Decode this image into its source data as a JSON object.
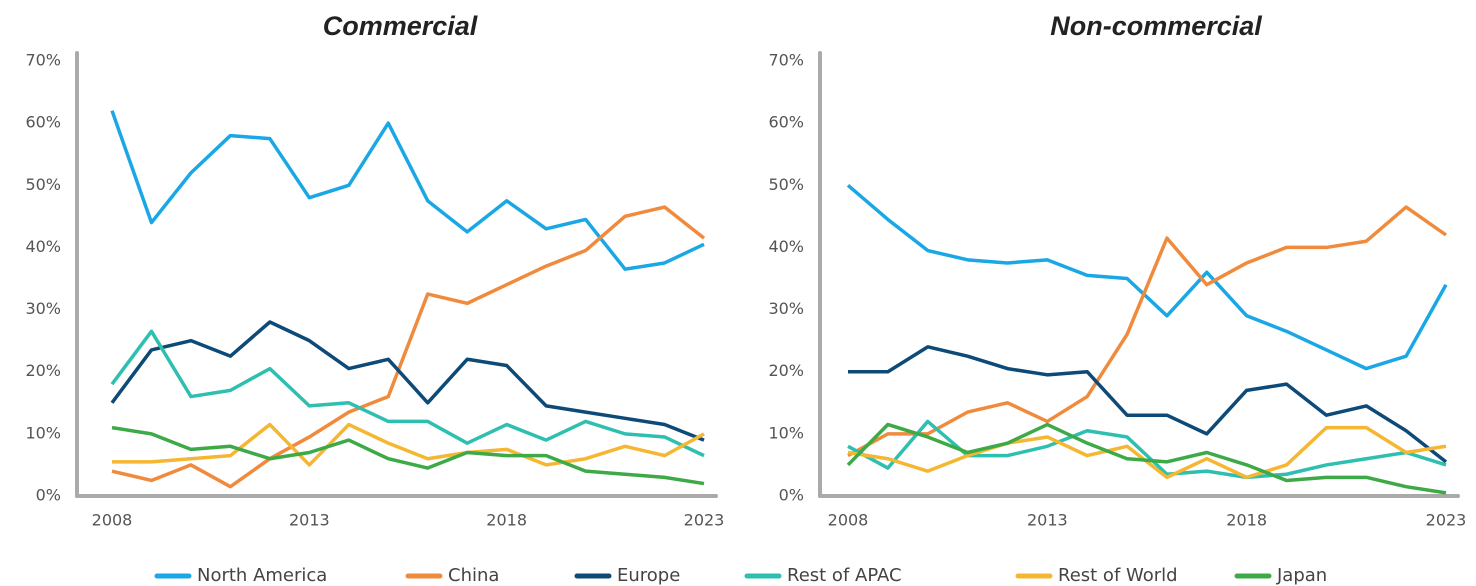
{
  "chart_data": [
    {
      "type": "line",
      "title": "Commercial",
      "x": [
        2008,
        2009,
        2010,
        2011,
        2012,
        2013,
        2014,
        2015,
        2016,
        2017,
        2018,
        2019,
        2020,
        2021,
        2022,
        2023
      ],
      "xlim": [
        2008,
        2023
      ],
      "xticks": [
        2008,
        2013,
        2018,
        2023
      ],
      "ylim": [
        0,
        70
      ],
      "yticks": [
        {
          "value": 0,
          "label": "0%"
        },
        {
          "value": 10,
          "label": "10%"
        },
        {
          "value": 20,
          "label": "20%"
        },
        {
          "value": 30,
          "label": "30%"
        },
        {
          "value": 40,
          "label": "40%"
        },
        {
          "value": 50,
          "label": "50%"
        },
        {
          "value": 60,
          "label": "60%"
        },
        {
          "value": 70,
          "label": "70%"
        }
      ],
      "series": [
        {
          "name": "North America",
          "color": "#1aa7e6",
          "values": [
            62,
            44,
            52,
            58,
            57.5,
            48,
            50,
            60,
            47.5,
            42.5,
            47.5,
            43,
            44.5,
            36.5,
            37.5,
            40.5
          ]
        },
        {
          "name": "China",
          "color": "#f08a3c",
          "values": [
            4,
            2.5,
            5,
            1.5,
            6,
            9.5,
            13.5,
            16,
            32.5,
            31,
            34,
            37,
            39.5,
            45,
            46.5,
            41.5
          ]
        },
        {
          "name": "Europe",
          "color": "#0d4a78",
          "values": [
            15,
            23.5,
            25,
            22.5,
            28,
            25,
            20.5,
            22,
            15,
            22,
            21,
            14.5,
            13.5,
            12.5,
            11.5,
            9
          ]
        },
        {
          "name": "Rest of APAC",
          "color": "#2ebfb0",
          "values": [
            18,
            26.5,
            16,
            17,
            20.5,
            14.5,
            15,
            12,
            12,
            8.5,
            11.5,
            9,
            12,
            10,
            9.5,
            6.5
          ]
        },
        {
          "name": "Rest of World",
          "color": "#f5b731",
          "values": [
            5.5,
            5.5,
            6,
            6.5,
            11.5,
            5,
            11.5,
            8.5,
            6,
            7,
            7.5,
            5,
            6,
            8,
            6.5,
            10
          ]
        },
        {
          "name": "Japan",
          "color": "#3daa47",
          "values": [
            11,
            10,
            7.5,
            8,
            6,
            7,
            9,
            6,
            4.5,
            7,
            6.5,
            6.5,
            4,
            3.5,
            3,
            2
          ]
        }
      ]
    },
    {
      "type": "line",
      "title": "Non-commercial",
      "x": [
        2008,
        2009,
        2010,
        2011,
        2012,
        2013,
        2014,
        2015,
        2016,
        2017,
        2018,
        2019,
        2020,
        2021,
        2022,
        2023
      ],
      "xlim": [
        2008,
        2023
      ],
      "xticks": [
        2008,
        2013,
        2018,
        2023
      ],
      "ylim": [
        0,
        70
      ],
      "yticks": [
        {
          "value": 0,
          "label": "0%"
        },
        {
          "value": 10,
          "label": "10%"
        },
        {
          "value": 20,
          "label": "20%"
        },
        {
          "value": 30,
          "label": "30%"
        },
        {
          "value": 40,
          "label": "40%"
        },
        {
          "value": 50,
          "label": "50%"
        },
        {
          "value": 60,
          "label": "60%"
        },
        {
          "value": 70,
          "label": "70%"
        }
      ],
      "series": [
        {
          "values": [
            50,
            44.5,
            39.5,
            38,
            37.5,
            38,
            35.5,
            35,
            29,
            36,
            29,
            26.5,
            23.5,
            20.5,
            22.5,
            34
          ]
        },
        {
          "values": [
            6.5,
            10,
            10,
            13.5,
            15,
            12,
            16,
            26,
            41.5,
            34,
            37.5,
            40,
            40,
            41,
            46.5,
            42
          ]
        },
        {
          "values": [
            20,
            20,
            24,
            22.5,
            20.5,
            19.5,
            20,
            13,
            13,
            10,
            17,
            18,
            13,
            14.5,
            10.5,
            5.5
          ]
        },
        {
          "values": [
            8,
            4.5,
            12,
            6.5,
            6.5,
            8,
            10.5,
            9.5,
            3.5,
            4,
            3,
            3.5,
            5,
            6,
            7,
            5
          ]
        },
        {
          "values": [
            7,
            6,
            4,
            6.5,
            8.5,
            9.5,
            6.5,
            8,
            3,
            6,
            3,
            5,
            11,
            11,
            7,
            8
          ]
        },
        {
          "values": [
            5,
            11.5,
            9.5,
            7,
            8.5,
            11.5,
            8.5,
            6,
            5.5,
            7,
            5,
            2.5,
            3,
            3,
            1.5,
            0.5
          ]
        }
      ]
    }
  ]
}
